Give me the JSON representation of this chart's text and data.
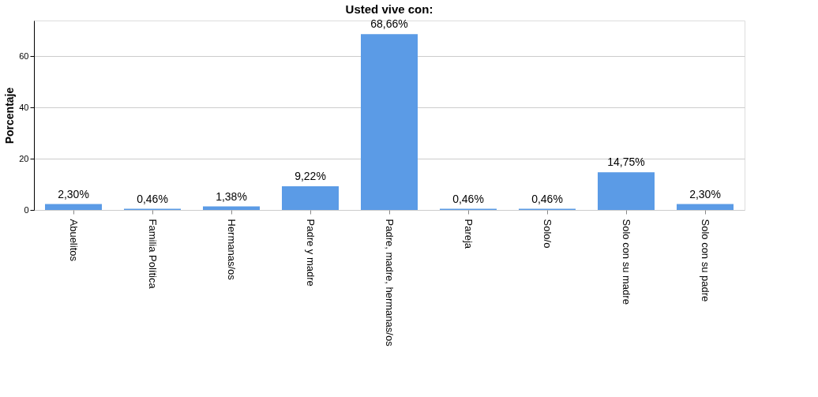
{
  "chart_data": {
    "type": "bar",
    "title": "Usted vive con:",
    "ylabel": "Porcentaje",
    "categories": [
      "Abuelitos",
      "Familia Política",
      "Hermanas/os",
      "Padre y madre",
      "Padre, madre, hermanas/os",
      "Pareja",
      "Solo/o",
      "Solo con su madre",
      "Solo con su padre"
    ],
    "values": [
      2.3,
      0.46,
      1.38,
      9.22,
      68.66,
      0.46,
      0.46,
      14.75,
      2.3
    ],
    "value_labels": [
      "2,30%",
      "0,46%",
      "1,38%",
      "9,22%",
      "68,66%",
      "0,46%",
      "0,46%",
      "14,75%",
      "2,30%"
    ],
    "color": "#5b9be6",
    "ylim": [
      0,
      74
    ],
    "yticks": [
      0,
      20,
      40,
      60
    ],
    "grid": "y"
  }
}
